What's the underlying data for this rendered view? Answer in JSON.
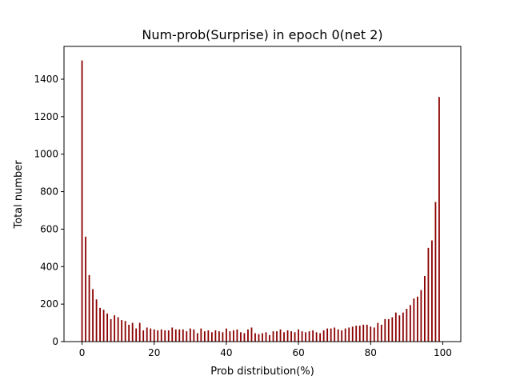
{
  "chart_data": {
    "type": "bar",
    "title": "Num-prob(Surprise) in epoch 0(net 2)",
    "xlabel": "Prob distribution(%)",
    "ylabel": "Total number",
    "xlim": [
      -5,
      105
    ],
    "ylim": [
      0,
      1575
    ],
    "xticks": [
      0,
      20,
      40,
      60,
      80,
      100
    ],
    "yticks": [
      0,
      200,
      400,
      600,
      800,
      1000,
      1200,
      1400
    ],
    "grid": false,
    "bar_color": "#8b0000",
    "x": [
      0,
      1,
      2,
      3,
      4,
      5,
      6,
      7,
      8,
      9,
      10,
      11,
      12,
      13,
      14,
      15,
      16,
      17,
      18,
      19,
      20,
      21,
      22,
      23,
      24,
      25,
      26,
      27,
      28,
      29,
      30,
      31,
      32,
      33,
      34,
      35,
      36,
      37,
      38,
      39,
      40,
      41,
      42,
      43,
      44,
      45,
      46,
      47,
      48,
      49,
      50,
      51,
      52,
      53,
      54,
      55,
      56,
      57,
      58,
      59,
      60,
      61,
      62,
      63,
      64,
      65,
      66,
      67,
      68,
      69,
      70,
      71,
      72,
      73,
      74,
      75,
      76,
      77,
      78,
      79,
      80,
      81,
      82,
      83,
      84,
      85,
      86,
      87,
      88,
      89,
      90,
      91,
      92,
      93,
      94,
      95,
      96,
      97,
      98,
      99
    ],
    "values": [
      1500,
      560,
      355,
      280,
      225,
      180,
      170,
      150,
      120,
      140,
      130,
      115,
      110,
      90,
      100,
      70,
      100,
      60,
      75,
      70,
      65,
      60,
      65,
      60,
      60,
      75,
      65,
      65,
      65,
      55,
      70,
      65,
      45,
      70,
      55,
      60,
      50,
      60,
      55,
      50,
      70,
      55,
      60,
      65,
      50,
      45,
      65,
      75,
      45,
      40,
      45,
      50,
      35,
      55,
      55,
      65,
      50,
      60,
      55,
      50,
      65,
      55,
      50,
      55,
      60,
      50,
      45,
      60,
      70,
      70,
      75,
      65,
      60,
      70,
      75,
      80,
      85,
      85,
      90,
      90,
      80,
      75,
      100,
      90,
      120,
      120,
      130,
      155,
      140,
      155,
      175,
      195,
      230,
      240,
      275,
      350,
      500,
      540,
      745,
      1305
    ]
  }
}
